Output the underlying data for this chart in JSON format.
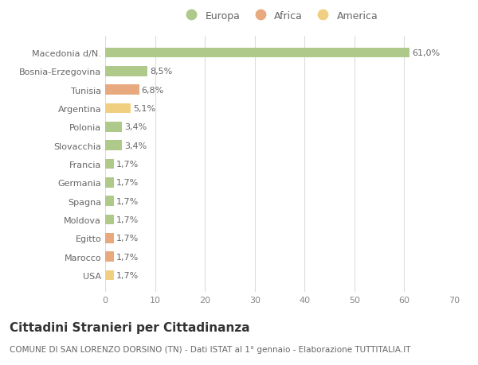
{
  "countries": [
    "Macedonia d/N.",
    "Bosnia-Erzegovina",
    "Tunisia",
    "Argentina",
    "Polonia",
    "Slovacchia",
    "Francia",
    "Germania",
    "Spagna",
    "Moldova",
    "Egitto",
    "Marocco",
    "USA"
  ],
  "values": [
    61.0,
    8.5,
    6.8,
    5.1,
    3.4,
    3.4,
    1.7,
    1.7,
    1.7,
    1.7,
    1.7,
    1.7,
    1.7
  ],
  "labels": [
    "61,0%",
    "8,5%",
    "6,8%",
    "5,1%",
    "3,4%",
    "3,4%",
    "1,7%",
    "1,7%",
    "1,7%",
    "1,7%",
    "1,7%",
    "1,7%",
    "1,7%"
  ],
  "categories": [
    "Europa",
    "Europa",
    "Africa",
    "America",
    "Europa",
    "Europa",
    "Europa",
    "Europa",
    "Europa",
    "Europa",
    "Africa",
    "Africa",
    "America"
  ],
  "colors": {
    "Europa": "#aec98a",
    "Africa": "#e8a97e",
    "America": "#f0d080"
  },
  "xlim": [
    0,
    70
  ],
  "xticks": [
    0,
    10,
    20,
    30,
    40,
    50,
    60,
    70
  ],
  "title": "Cittadini Stranieri per Cittadinanza",
  "subtitle": "COMUNE DI SAN LORENZO DORSINO (TN) - Dati ISTAT al 1° gennaio - Elaborazione TUTTITALIA.IT",
  "background_color": "#ffffff",
  "grid_color": "#dddddd",
  "bar_height": 0.55,
  "title_fontsize": 11,
  "subtitle_fontsize": 7.5,
  "label_fontsize": 8,
  "tick_fontsize": 8,
  "legend_fontsize": 9,
  "text_color": "#666666"
}
